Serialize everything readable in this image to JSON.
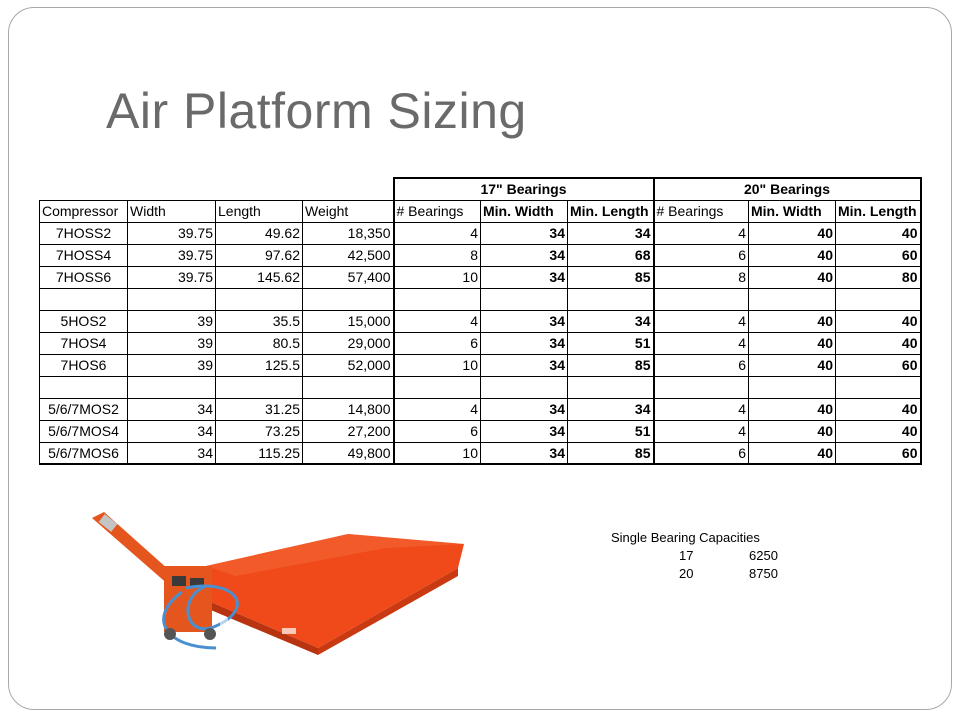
{
  "title": "Air Platform Sizing",
  "table": {
    "groups": [
      "17\" Bearings",
      "20\" Bearings"
    ],
    "headers": [
      "Compressor",
      "Width",
      "Length",
      "Weight",
      "# Bearings",
      "Min. Width",
      "Min. Length",
      "# Bearings",
      "Min. Width",
      "Min. Length"
    ],
    "rows": [
      [
        "7HOSS2",
        "39.75",
        "49.62",
        "18,350",
        "4",
        "34",
        "34",
        "4",
        "40",
        "40"
      ],
      [
        "7HOSS4",
        "39.75",
        "97.62",
        "42,500",
        "8",
        "34",
        "68",
        "6",
        "40",
        "60"
      ],
      [
        "7HOSS6",
        "39.75",
        "145.62",
        "57,400",
        "10",
        "34",
        "85",
        "8",
        "40",
        "80"
      ],
      [
        "",
        "",
        "",
        "",
        "",
        "",
        "",
        "",
        "",
        ""
      ],
      [
        "5HOS2",
        "39",
        "35.5",
        "15,000",
        "4",
        "34",
        "34",
        "4",
        "40",
        "40"
      ],
      [
        "7HOS4",
        "39",
        "80.5",
        "29,000",
        "6",
        "34",
        "51",
        "4",
        "40",
        "40"
      ],
      [
        "7HOS6",
        "39",
        "125.5",
        "52,000",
        "10",
        "34",
        "85",
        "6",
        "40",
        "60"
      ],
      [
        "",
        "",
        "",
        "",
        "",
        "",
        "",
        "",
        "",
        ""
      ],
      [
        "5/6/7MOS2",
        "34",
        "31.25",
        "14,800",
        "4",
        "34",
        "34",
        "4",
        "40",
        "40"
      ],
      [
        "5/6/7MOS4",
        "34",
        "73.25",
        "27,200",
        "6",
        "34",
        "51",
        "4",
        "40",
        "40"
      ],
      [
        "5/6/7MOS6",
        "34",
        "115.25",
        "49,800",
        "10",
        "34",
        "85",
        "6",
        "40",
        "60"
      ]
    ]
  },
  "capacities": {
    "title": "Single Bearing Capacities",
    "rows": [
      {
        "size": "17",
        "capacity": "6250"
      },
      {
        "size": "20",
        "capacity": "8750"
      }
    ]
  },
  "colors": {
    "platform": "#f04a1a",
    "hose": "#4a8fd0"
  }
}
